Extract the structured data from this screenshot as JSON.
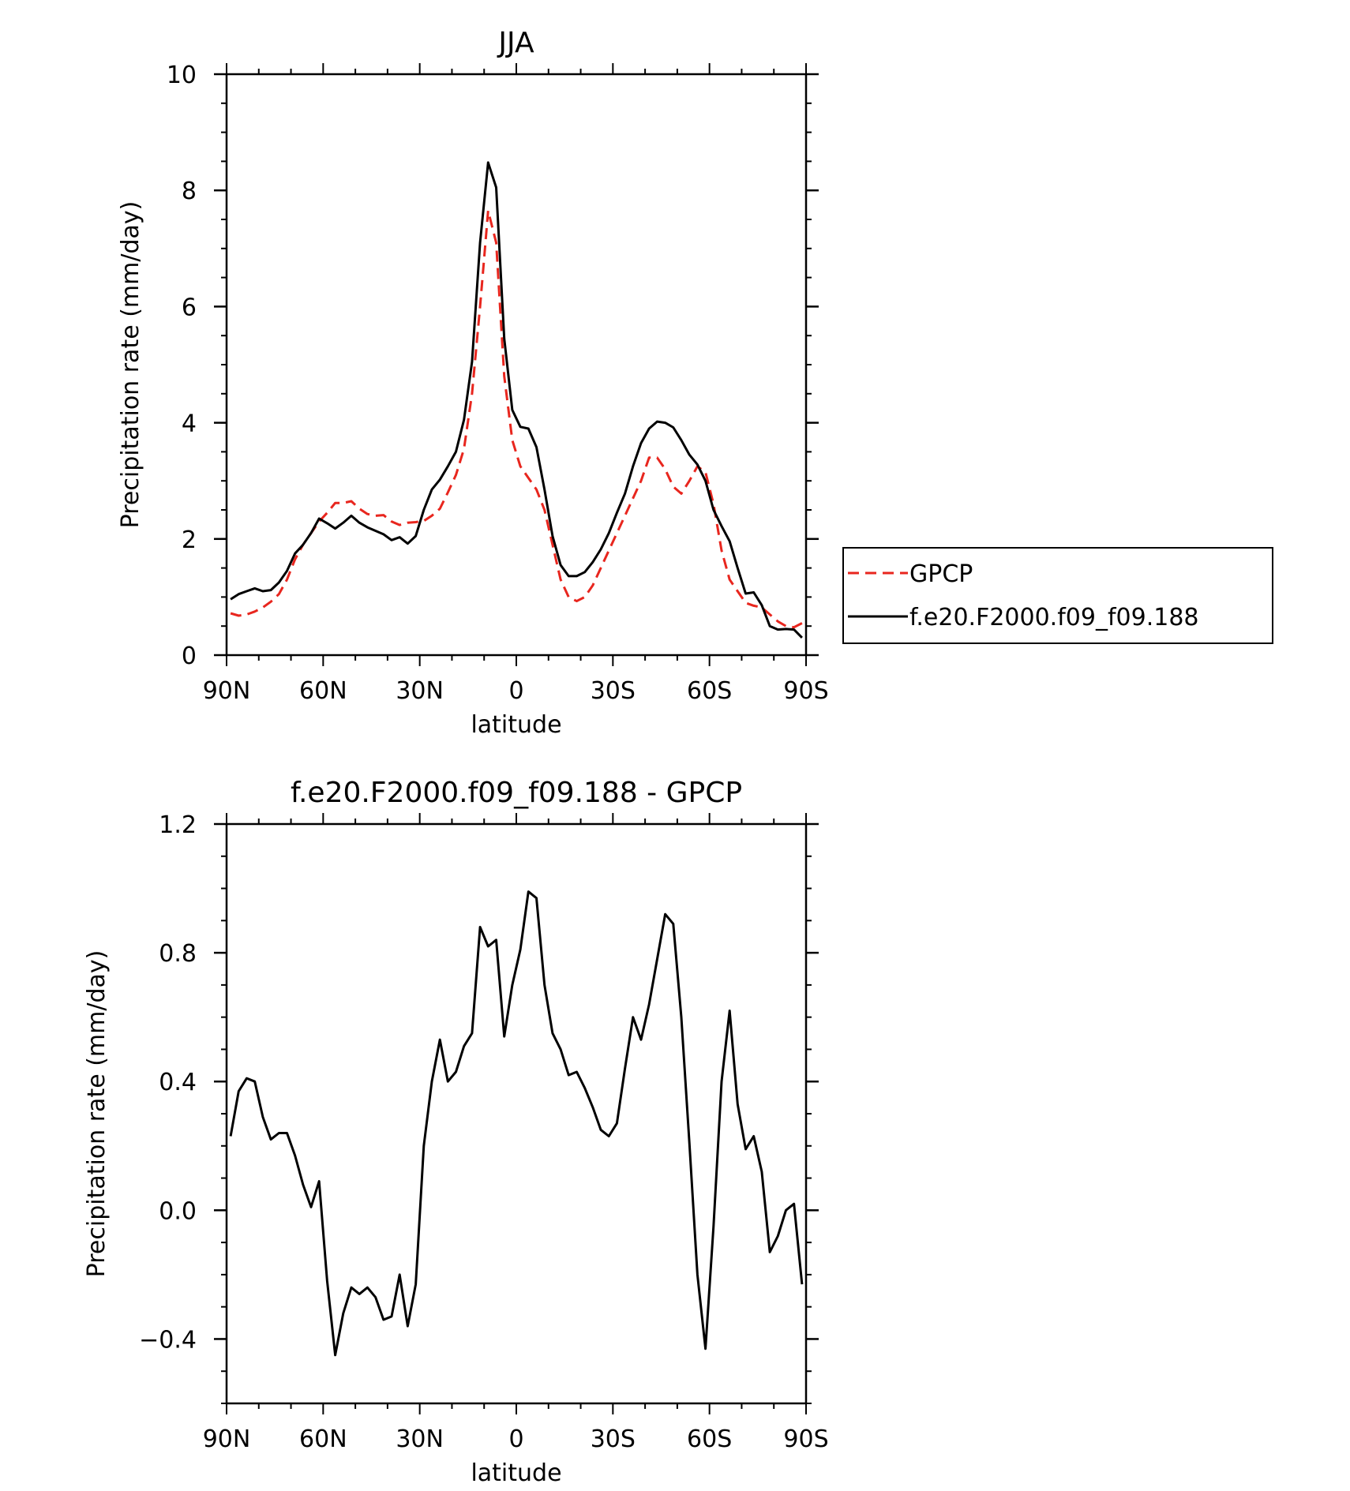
{
  "colors": {
    "gpcp": "#e8261e",
    "model": "#000000"
  },
  "chart_data": [
    {
      "type": "line",
      "title": "JJA",
      "xlabel": "latitude",
      "ylabel": "Precipitation rate (mm/day)",
      "xlim": [
        90,
        -90
      ],
      "ylim": [
        0,
        10
      ],
      "xticks": [
        90,
        60,
        30,
        0,
        -30,
        -60,
        -90
      ],
      "xtick_labels": [
        "90N",
        "60N",
        "30N",
        "0",
        "30S",
        "60S",
        "90S"
      ],
      "yticks": [
        0,
        2,
        4,
        6,
        8,
        10
      ],
      "ytick_labels": [
        "0",
        "2",
        "4",
        "6",
        "8",
        "10"
      ],
      "legend_position": "right",
      "series": [
        {
          "name": "GPCP",
          "style": "dashed",
          "color": "#e8261e",
          "x": [
            88.75,
            86.25,
            83.75,
            81.25,
            78.75,
            76.25,
            73.75,
            71.25,
            68.75,
            66.25,
            63.75,
            61.25,
            58.75,
            56.25,
            53.75,
            51.25,
            48.75,
            46.25,
            43.75,
            41.25,
            38.75,
            36.25,
            33.75,
            31.25,
            28.75,
            26.25,
            23.75,
            21.25,
            18.75,
            16.25,
            13.75,
            11.25,
            8.75,
            6.25,
            3.75,
            1.25,
            -1.25,
            -3.75,
            -6.25,
            -8.75,
            -11.25,
            -13.75,
            -16.25,
            -18.75,
            -21.25,
            -23.75,
            -26.25,
            -28.75,
            -31.25,
            -33.75,
            -36.25,
            -38.75,
            -41.25,
            -43.75,
            -46.25,
            -48.75,
            -51.25,
            -53.75,
            -56.25,
            -58.75,
            -61.25,
            -63.75,
            -66.25,
            -68.75,
            -71.25,
            -73.75,
            -76.25,
            -78.75,
            -81.25,
            -83.75,
            -86.25,
            -88.75
          ],
          "y": [
            0.72,
            0.68,
            0.7,
            0.75,
            0.82,
            0.92,
            1.05,
            1.3,
            1.65,
            1.9,
            2.1,
            2.3,
            2.45,
            2.62,
            2.62,
            2.65,
            2.52,
            2.43,
            2.4,
            2.41,
            2.3,
            2.24,
            2.28,
            2.29,
            2.31,
            2.4,
            2.52,
            2.8,
            3.1,
            3.55,
            4.5,
            6.0,
            7.65,
            7.1,
            4.8,
            3.7,
            3.25,
            3.05,
            2.85,
            2.5,
            1.9,
            1.3,
            1.0,
            0.93,
            1.0,
            1.2,
            1.5,
            1.8,
            2.1,
            2.4,
            2.7,
            3.0,
            3.4,
            3.4,
            3.2,
            2.9,
            2.78,
            3.0,
            3.25,
            3.15,
            2.6,
            1.8,
            1.3,
            1.1,
            0.9,
            0.85,
            0.82,
            0.7,
            0.58,
            0.5,
            0.48,
            0.55
          ]
        },
        {
          "name": "f.e20.F2000.f09_f09.188",
          "style": "solid",
          "color": "#000000",
          "x": [
            88.75,
            86.25,
            83.75,
            81.25,
            78.75,
            76.25,
            73.75,
            71.25,
            68.75,
            66.25,
            63.75,
            61.25,
            58.75,
            56.25,
            53.75,
            51.25,
            48.75,
            46.25,
            43.75,
            41.25,
            38.75,
            36.25,
            33.75,
            31.25,
            28.75,
            26.25,
            23.75,
            21.25,
            18.75,
            16.25,
            13.75,
            11.25,
            8.75,
            6.25,
            3.75,
            1.25,
            -1.25,
            -3.75,
            -6.25,
            -8.75,
            -11.25,
            -13.75,
            -16.25,
            -18.75,
            -21.25,
            -23.75,
            -26.25,
            -28.75,
            -31.25,
            -33.75,
            -36.25,
            -38.75,
            -41.25,
            -43.75,
            -46.25,
            -48.75,
            -51.25,
            -53.75,
            -56.25,
            -58.75,
            -61.25,
            -63.75,
            -66.25,
            -68.75,
            -71.25,
            -73.75,
            -76.25,
            -78.75,
            -81.25,
            -83.75,
            -86.25,
            -88.75
          ],
          "y": [
            0.96,
            1.05,
            1.1,
            1.15,
            1.1,
            1.12,
            1.25,
            1.45,
            1.75,
            1.9,
            2.1,
            2.35,
            2.27,
            2.18,
            2.28,
            2.4,
            2.28,
            2.2,
            2.14,
            2.08,
            1.98,
            2.03,
            1.92,
            2.05,
            2.5,
            2.85,
            3.02,
            3.25,
            3.5,
            4.05,
            5.05,
            7.1,
            8.48,
            8.05,
            5.45,
            4.22,
            3.93,
            3.9,
            3.58,
            2.85,
            2.05,
            1.55,
            1.36,
            1.36,
            1.43,
            1.6,
            1.82,
            2.1,
            2.45,
            2.78,
            3.25,
            3.65,
            3.9,
            4.02,
            4.0,
            3.92,
            3.7,
            3.45,
            3.28,
            3.0,
            2.5,
            2.22,
            1.96,
            1.5,
            1.06,
            1.08,
            0.86,
            0.5,
            0.44,
            0.45,
            0.44,
            0.3
          ]
        }
      ]
    },
    {
      "type": "line",
      "title": "f.e20.F2000.f09_f09.188 - GPCP",
      "xlabel": "latitude",
      "ylabel": "Precipitation rate (mm/day)",
      "xlim": [
        90,
        -90
      ],
      "ylim": [
        -0.6,
        1.2
      ],
      "xticks": [
        90,
        60,
        30,
        0,
        -30,
        -60,
        -90
      ],
      "xtick_labels": [
        "90N",
        "60N",
        "30N",
        "0",
        "30S",
        "60S",
        "90S"
      ],
      "yticks": [
        -0.4,
        0,
        0.4,
        0.8,
        1.2
      ],
      "ytick_labels": [
        "-0.4",
        "0.0",
        "0.4",
        "0.8",
        "1.2"
      ],
      "series": [
        {
          "color": "#000000",
          "style": "solid",
          "x": [
            88.75,
            86.25,
            83.75,
            81.25,
            78.75,
            76.25,
            73.75,
            71.25,
            68.75,
            66.25,
            63.75,
            61.25,
            58.75,
            56.25,
            53.75,
            51.25,
            48.75,
            46.25,
            43.75,
            41.25,
            38.75,
            36.25,
            33.75,
            31.25,
            28.75,
            26.25,
            23.75,
            21.25,
            18.75,
            16.25,
            13.75,
            11.25,
            8.75,
            6.25,
            3.75,
            1.25,
            -1.25,
            -3.75,
            -6.25,
            -8.75,
            -11.25,
            -13.75,
            -16.25,
            -18.75,
            -21.25,
            -23.75,
            -26.25,
            -28.75,
            -31.25,
            -33.75,
            -36.25,
            -38.75,
            -41.25,
            -43.75,
            -46.25,
            -48.75,
            -51.25,
            -53.75,
            -56.25,
            -58.75,
            -61.25,
            -63.75,
            -66.25,
            -68.75,
            -71.25,
            -73.75,
            -76.25,
            -78.75,
            -81.25,
            -83.75,
            -86.25,
            -88.75
          ],
          "y": [
            0.23,
            0.37,
            0.41,
            0.4,
            0.29,
            0.22,
            0.24,
            0.24,
            0.17,
            0.08,
            0.01,
            0.09,
            -0.22,
            -0.45,
            -0.32,
            -0.24,
            -0.26,
            -0.24,
            -0.27,
            -0.34,
            -0.33,
            -0.2,
            -0.36,
            -0.23,
            0.2,
            0.4,
            0.53,
            0.4,
            0.43,
            0.51,
            0.55,
            0.88,
            0.82,
            0.84,
            0.54,
            0.7,
            0.81,
            0.99,
            0.97,
            0.7,
            0.55,
            0.5,
            0.42,
            0.43,
            0.38,
            0.32,
            0.25,
            0.23,
            0.27,
            0.44,
            0.6,
            0.53,
            0.64,
            0.78,
            0.92,
            0.89,
            0.6,
            0.21,
            -0.2,
            -0.43,
            -0.05,
            0.4,
            0.62,
            0.33,
            0.19,
            0.23,
            0.12,
            -0.13,
            -0.08,
            0.0,
            0.02,
            -0.23
          ]
        }
      ]
    }
  ]
}
